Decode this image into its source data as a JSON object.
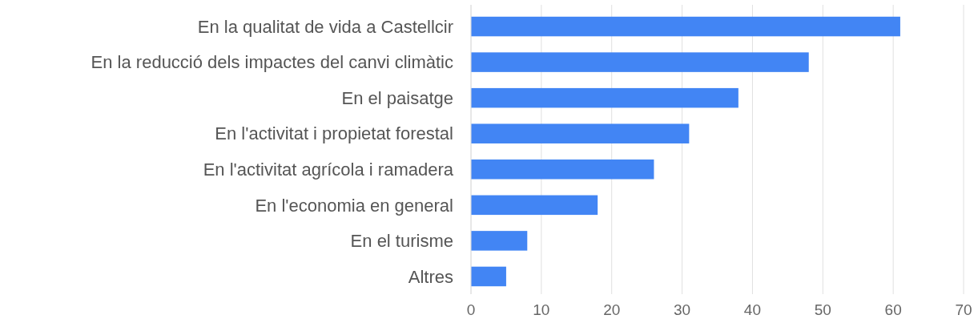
{
  "chart_data": {
    "type": "bar",
    "orientation": "horizontal",
    "categories": [
      "En la qualitat de vida a Castellcir",
      "En la reducció dels impactes del canvi climàtic",
      "En el paisatge",
      "En l'activitat i propietat forestal",
      "En l'activitat agrícola i ramadera",
      "En l'economia en general",
      "En el turisme",
      "Altres"
    ],
    "values": [
      61,
      48,
      38,
      31,
      26,
      18,
      8,
      5
    ],
    "color": "#4285f4",
    "xlim": [
      0,
      70
    ],
    "xticks": [
      0,
      10,
      20,
      30,
      40,
      50,
      60,
      70
    ],
    "grid": "x"
  }
}
